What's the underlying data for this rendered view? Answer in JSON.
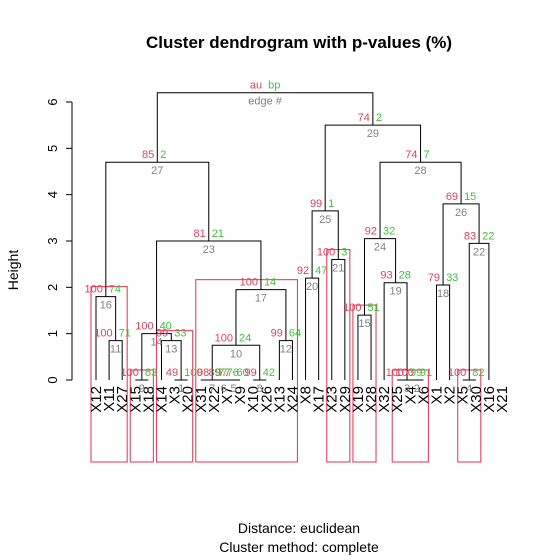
{
  "chart_data": {
    "type": "dendrogram",
    "title": "Cluster dendrogram with p-values (%)",
    "ylabel": "Height",
    "ylim": [
      0,
      6.5
    ],
    "yticks": [
      0,
      1,
      2,
      3,
      4,
      5,
      6
    ],
    "footer": [
      "Distance:  euclidean",
      "Cluster method: complete"
    ],
    "legend": {
      "au": "au",
      "bp": "bp",
      "edge": "edge #"
    },
    "colors": {
      "au": "#e0405a",
      "bp": "#3cc43c",
      "edge": "#808080",
      "rect": "#e8425f"
    },
    "leaves": [
      "X12",
      "X11",
      "X27",
      "X15",
      "X18",
      "X14",
      "X3",
      "X20",
      "X31",
      "X22",
      "X7",
      "X9",
      "X10",
      "X26",
      "X13",
      "X24",
      "X8",
      "X17",
      "X23",
      "X29",
      "X19",
      "X28",
      "X32",
      "X25",
      "X4",
      "X6",
      "X1",
      "X2",
      "X5",
      "X30",
      "X16",
      "X21"
    ],
    "merges": [
      {
        "edge": 1,
        "a": "X3",
        "b": "X20",
        "height": 0.0,
        "au": 49,
        "bp": 100
      },
      {
        "edge": 2,
        "a": "X4",
        "b": "X6",
        "height": 0.0,
        "au": 100,
        "bp": 91
      },
      {
        "edge": 3,
        "a": "X25",
        "b": 2,
        "height": 0.0,
        "au": 100,
        "bp": 99
      },
      {
        "edge": 4,
        "a": "X5",
        "b": "X30",
        "height": 0.0,
        "au": 100,
        "bp": 82
      },
      {
        "edge": 5,
        "a": "X7",
        "b": "X9",
        "height": 0.0,
        "au": 77,
        "bp": 60
      },
      {
        "edge": 6,
        "a": "X22",
        "b": 5,
        "height": 0.0,
        "au": 89,
        "bp": 76
      },
      {
        "edge": 7,
        "a": "X31",
        "b": 6,
        "height": 0.0,
        "au": 98,
        "bp": 97
      },
      {
        "edge": 8,
        "a": "X10",
        "b": "X26",
        "height": 0.0,
        "au": 99,
        "bp": 42
      },
      {
        "edge": 9,
        "a": "X15",
        "b": "X18",
        "height": 0.0,
        "au": 100,
        "bp": 83
      },
      {
        "edge": 10,
        "a": 7,
        "b": 8,
        "height": 0.75,
        "au": 100,
        "bp": 24
      },
      {
        "edge": 11,
        "a": "X11",
        "b": "X27",
        "height": 0.85,
        "au": 100,
        "bp": 71
      },
      {
        "edge": 12,
        "a": "X13",
        "b": "X24",
        "height": 0.85,
        "au": 99,
        "bp": 64
      },
      {
        "edge": 13,
        "a": "X14",
        "b": 1,
        "height": 0.85,
        "au": 99,
        "bp": 33
      },
      {
        "edge": 14,
        "a": 9,
        "b": 13,
        "height": 1.0,
        "au": 100,
        "bp": 40
      },
      {
        "edge": 15,
        "a": "X19",
        "b": "X28",
        "height": 1.4,
        "au": 100,
        "bp": 51
      },
      {
        "edge": 16,
        "a": "X12",
        "b": 11,
        "height": 1.8,
        "au": 100,
        "bp": 74
      },
      {
        "edge": 17,
        "a": 10,
        "b": 12,
        "height": 1.95,
        "au": 100,
        "bp": 14
      },
      {
        "edge": 18,
        "a": "X1",
        "b": "X2",
        "height": 2.05,
        "au": 79,
        "bp": 33
      },
      {
        "edge": 19,
        "a": "X32",
        "b": 3,
        "height": 2.1,
        "au": 93,
        "bp": 28
      },
      {
        "edge": 20,
        "a": "X8",
        "b": "X17",
        "height": 2.2,
        "au": 92,
        "bp": 47
      },
      {
        "edge": 21,
        "a": "X23",
        "b": "X29",
        "height": 2.6,
        "au": 100,
        "bp": 3
      },
      {
        "edge": 22,
        "a": 4,
        "b": "X16",
        "height": 2.95,
        "au": 83,
        "bp": 22
      },
      {
        "edge": 23,
        "a": 14,
        "b": 17,
        "height": 3.0,
        "au": 81,
        "bp": 21
      },
      {
        "edge": 24,
        "a": 15,
        "b": 19,
        "height": 3.05,
        "au": 92,
        "bp": 32
      },
      {
        "edge": 25,
        "a": 20,
        "b": 21,
        "height": 3.65,
        "au": 99,
        "bp": 1
      },
      {
        "edge": 26,
        "a": 18,
        "b": 22,
        "height": 3.8,
        "au": 69,
        "bp": 15
      },
      {
        "edge": 27,
        "a": 16,
        "b": 23,
        "height": 4.7,
        "au": 85,
        "bp": 2
      },
      {
        "edge": 28,
        "a": 24,
        "b": 26,
        "height": 4.7,
        "au": 74,
        "bp": 7
      },
      {
        "edge": 29,
        "a": 25,
        "b": 28,
        "height": 5.5,
        "au": 74,
        "bp": 2
      },
      {
        "edge": 30,
        "a": 27,
        "b": 29,
        "height": 6.2,
        "au": "au",
        "bp": "bp"
      }
    ],
    "highlight_clusters": [
      [
        "X12",
        "X11",
        "X27"
      ],
      [
        "X15",
        "X18"
      ],
      [
        "X14",
        "X3",
        "X20"
      ],
      [
        "X31",
        "X22",
        "X7",
        "X9",
        "X10",
        "X26",
        "X13",
        "X24"
      ],
      [
        "X23",
        "X29"
      ],
      [
        "X19",
        "X28"
      ],
      [
        "X25",
        "X4",
        "X6"
      ],
      [
        "X5",
        "X30"
      ]
    ]
  }
}
